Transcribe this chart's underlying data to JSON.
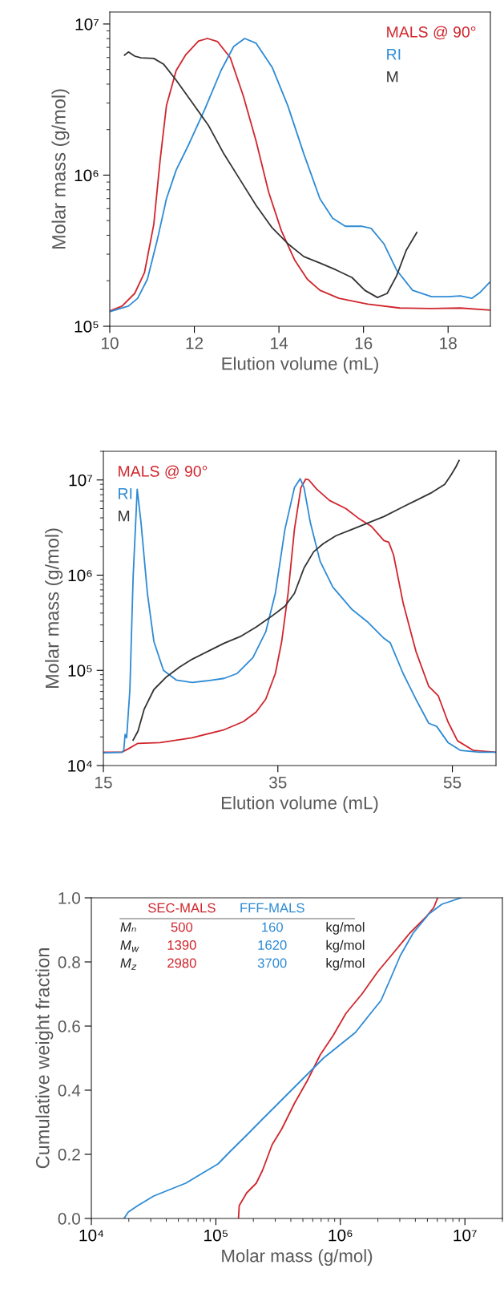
{
  "chart_data": [
    {
      "type": "line",
      "xlabel": "Elution volume (mL)",
      "ylabel": "Molar mass (g/mol)",
      "log": "y",
      "xlim": [
        10,
        19
      ],
      "ylim": [
        100000,
        12000000
      ],
      "xticks": [
        10,
        12,
        14,
        16,
        18
      ],
      "yticks": [
        {
          "value": 100000,
          "label": "10⁵"
        },
        {
          "value": 1000000,
          "label": "10⁶"
        },
        {
          "value": 10000000,
          "label": "10⁷"
        }
      ],
      "legend": "top right",
      "series": [
        {
          "name": "MALS @ 90°",
          "color": "#d0262d",
          "x": [
            10.0,
            10.29,
            10.59,
            10.82,
            11.04,
            11.19,
            11.34,
            11.57,
            11.8,
            12.1,
            12.31,
            12.55,
            12.85,
            13.16,
            13.46,
            13.76,
            14.06,
            14.37,
            14.67,
            14.97,
            15.42,
            16.1,
            16.86,
            17.61,
            18.29,
            18.98
          ],
          "values": [
            126000,
            136000,
            165000,
            226000,
            471000,
            1250000,
            2880000,
            4920000,
            6280000,
            7710000,
            8020000,
            7640000,
            5980000,
            3330000,
            1680000,
            767000,
            427000,
            275000,
            205000,
            173000,
            153000,
            140000,
            132000,
            131000,
            132000,
            128000
          ]
        },
        {
          "name": "RI",
          "color": "#2e8bd4",
          "x": [
            10.0,
            10.44,
            10.66,
            10.89,
            11.12,
            11.34,
            11.57,
            11.87,
            12.25,
            12.63,
            12.93,
            13.19,
            13.46,
            13.84,
            14.21,
            14.59,
            14.97,
            15.27,
            15.57,
            15.95,
            16.18,
            16.48,
            16.78,
            17.16,
            17.61,
            17.99,
            18.29,
            18.56,
            18.75,
            18.98
          ],
          "values": [
            125000,
            136000,
            153000,
            205000,
            369000,
            697000,
            1080000,
            1600000,
            2740000,
            4920000,
            7100000,
            8020000,
            7460000,
            5170000,
            2880000,
            1380000,
            697000,
            519000,
            459000,
            459000,
            444000,
            352000,
            236000,
            173000,
            157000,
            157000,
            159000,
            153000,
            167000,
            195000
          ]
        },
        {
          "name": "M",
          "color": "#333333",
          "x": [
            10.35,
            10.44,
            10.59,
            10.74,
            11.04,
            11.27,
            11.57,
            11.95,
            12.33,
            12.7,
            13.08,
            13.46,
            13.84,
            14.21,
            14.59,
            14.97,
            15.35,
            15.73,
            16.03,
            16.33,
            16.56,
            16.78,
            17.01,
            17.26
          ],
          "values": [
            6220000,
            6530000,
            6130000,
            5980000,
            5920000,
            5430000,
            4250000,
            3020000,
            2140000,
            1380000,
            933000,
            631000,
            448000,
            352000,
            289000,
            262000,
            236000,
            210000,
            173000,
            155000,
            165000,
            215000,
            318000,
            417000
          ]
        }
      ]
    },
    {
      "type": "line",
      "xlabel": "Elution volume (mL)",
      "ylabel": "Molar mass (g/mol)",
      "log": "y",
      "xlim": [
        15,
        60
      ],
      "ylim": [
        10000,
        20000000
      ],
      "xticks": [
        15,
        35,
        55
      ],
      "yticks": [
        {
          "value": 10000,
          "label": "10⁴"
        },
        {
          "value": 100000,
          "label": "10⁵"
        },
        {
          "value": 1000000,
          "label": "10⁶"
        },
        {
          "value": 10000000,
          "label": "10⁷"
        }
      ],
      "legend": "top left",
      "series": [
        {
          "name": "MALS @ 90°",
          "color": "#d0262d",
          "x": [
            15,
            17.12,
            17.86,
            18.96,
            21.52,
            25.18,
            28.85,
            31.04,
            32.51,
            33.61,
            34.71,
            35.44,
            36.17,
            36.9,
            37.64,
            38.19,
            38.55,
            39.47,
            40.93,
            42.77,
            44.23,
            45.7,
            47.16,
            47.71,
            48.26,
            49.36,
            50.82,
            52.29,
            53.39,
            54.49,
            55.59,
            57.42,
            59.9
          ],
          "values": [
            13800,
            13800,
            15000,
            17100,
            17400,
            19600,
            23800,
            28900,
            36500,
            49800,
            92500,
            201000,
            643000,
            3030000,
            8300000,
            10200000,
            10000000,
            7980000,
            6090000,
            5020000,
            3970000,
            3270000,
            2310000,
            2220000,
            1630000,
            509000,
            159000,
            67900,
            53800,
            28900,
            18200,
            14400,
            13800
          ]
        },
        {
          "name": "RI",
          "color": "#2e8bd4",
          "x": [
            15,
            17.12,
            17.34,
            17.49,
            17.67,
            18.04,
            18.41,
            18.88,
            19.32,
            20.05,
            20.79,
            21.89,
            23.35,
            25.18,
            27.01,
            28.85,
            30.31,
            32.14,
            33.61,
            34.71,
            35.81,
            36.9,
            37.56,
            38.0,
            38.73,
            39.84,
            41.3,
            43.5,
            45.33,
            47.16,
            47.89,
            49.36,
            50.82,
            52.29,
            53.2,
            54.49,
            55.95,
            58.15,
            59.9
          ],
          "values": [
            13600,
            13800,
            14400,
            21200,
            19600,
            62800,
            946000,
            7980000,
            3540000,
            643000,
            201000,
            100000,
            79200,
            74500,
            78000,
            82400,
            92500,
            136000,
            254000,
            643000,
            3030000,
            8300000,
            10300000,
            8300000,
            3540000,
            1400000,
            750000,
            436000,
            320000,
            217000,
            194000,
            92500,
            49800,
            27800,
            25800,
            17500,
            14400,
            13800,
            13800
          ]
        },
        {
          "name": "M",
          "color": "#333333",
          "x": [
            18.41,
            18.96,
            19.69,
            20.79,
            22.25,
            23.72,
            25.18,
            27.01,
            28.85,
            30.68,
            32.51,
            34.34,
            35.81,
            36.9,
            38.0,
            39.1,
            40.2,
            41.67,
            43.5,
            45.33,
            47.16,
            48.99,
            50.82,
            52.66,
            54.12,
            54.85,
            55.4,
            55.77
          ],
          "values": [
            18500,
            22900,
            39400,
            62800,
            85700,
            108000,
            131000,
            159000,
            193000,
            226000,
            285000,
            373000,
            471000,
            643000,
            1190000,
            1760000,
            2140000,
            2600000,
            3030000,
            3540000,
            4130000,
            5020000,
            6090000,
            7390000,
            8970000,
            11300000,
            13700000,
            16000000
          ]
        }
      ]
    },
    {
      "type": "line",
      "xlabel": "Molar mass (g/mol)",
      "ylabel": "Cumulative weight fraction",
      "log": "x",
      "xlim": [
        10000,
        20000000
      ],
      "ylim": [
        0,
        1
      ],
      "xticks": [
        {
          "value": 10000,
          "label": "10⁴"
        },
        {
          "value": 100000,
          "label": "10⁵"
        },
        {
          "value": 1000000,
          "label": "10⁶"
        },
        {
          "value": 10000000,
          "label": "10⁷"
        }
      ],
      "yticks": [
        {
          "value": 0,
          "label": "0.0"
        },
        {
          "value": 0.2,
          "label": "0.2"
        },
        {
          "value": 0.4,
          "label": "0.4"
        },
        {
          "value": 0.6,
          "label": "0.6"
        },
        {
          "value": 0.8,
          "label": "0.8"
        },
        {
          "value": 1,
          "label": "1.0"
        }
      ],
      "annotations": [
        "SEC-MALS",
        "FFF-MALS",
        "Mₙ",
        "500",
        "160",
        "kg/mol",
        "M$_{w}$",
        "1390",
        "1620",
        "kg/mol",
        "M$_{z}$",
        "2980",
        "3700",
        "kg/mol"
      ],
      "series": [
        {
          "color": "#d0262d",
          "x": [
            152000,
            154000,
            177000,
            211000,
            237000,
            283000,
            339000,
            429000,
            543000,
            688000,
            873000,
            1110000,
            1490000,
            2000000,
            2690000,
            3610000,
            4860000,
            5630000,
            6040000
          ],
          "values": [
            0.0,
            0.04,
            0.08,
            0.11,
            0.15,
            0.23,
            0.28,
            0.36,
            0.43,
            0.51,
            0.57,
            0.64,
            0.7,
            0.77,
            0.83,
            0.89,
            0.94,
            0.97,
            1.0
          ]
        },
        {
          "color": "#2e8bd4",
          "x": [
            18300,
            19800,
            23600,
            31700,
            42600,
            57300,
            77100,
            104000,
            131000,
            177000,
            237000,
            319000,
            429000,
            577000,
            731000,
            983000,
            1320000,
            1670000,
            2120000,
            2540000,
            3030000,
            3840000,
            5150000,
            6530000,
            9310000
          ],
          "values": [
            0.0,
            0.02,
            0.04,
            0.07,
            0.09,
            0.11,
            0.14,
            0.17,
            0.21,
            0.26,
            0.31,
            0.36,
            0.41,
            0.46,
            0.5,
            0.54,
            0.58,
            0.63,
            0.68,
            0.75,
            0.82,
            0.89,
            0.95,
            0.98,
            1.0
          ]
        }
      ]
    }
  ]
}
